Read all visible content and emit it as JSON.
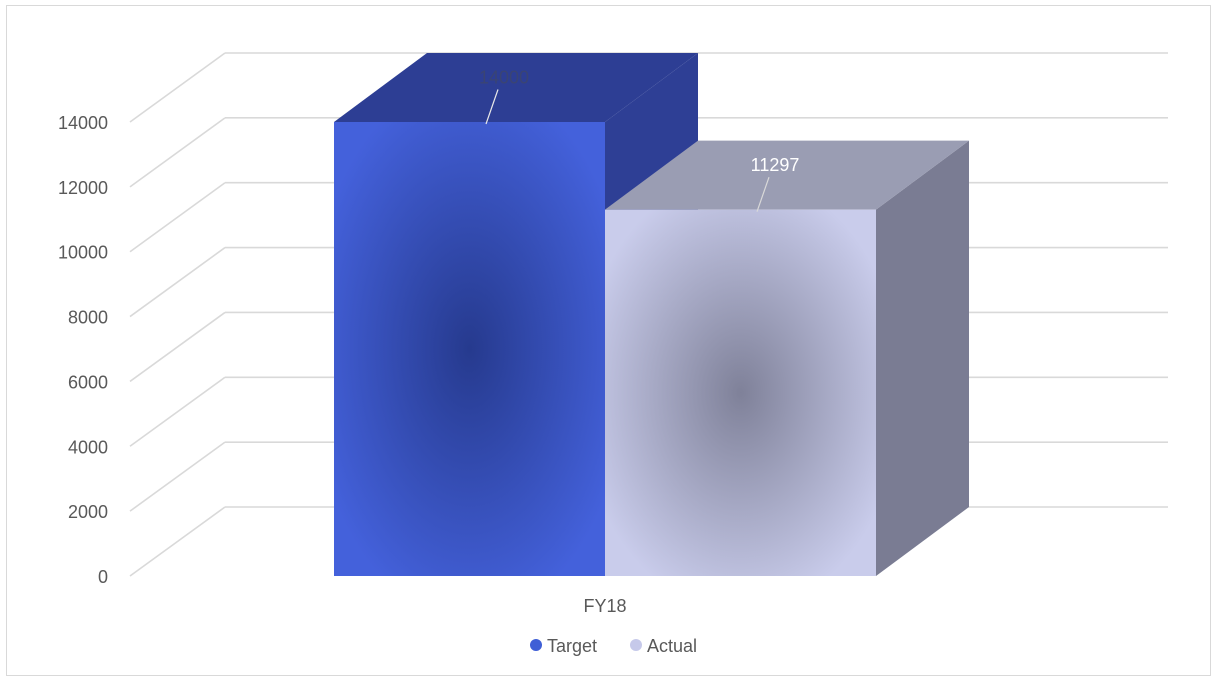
{
  "chart_data": {
    "type": "bar",
    "style": "3d-clustered-column",
    "categories": [
      "FY18"
    ],
    "series": [
      {
        "name": "Target",
        "values": [
          14000
        ],
        "color": "#3f5fd6",
        "side_color": "#2e3f95",
        "top_color": "#2d3e94"
      },
      {
        "name": "Actual",
        "values": [
          11297
        ],
        "color": "#c6c9ea",
        "side_color": "#7a7c93",
        "top_color": "#9a9db3"
      }
    ],
    "data_labels": [
      "14000",
      "11297"
    ],
    "ylim": [
      0,
      14000
    ],
    "yticks": [
      0,
      2000,
      4000,
      6000,
      8000,
      10000,
      12000,
      14000
    ],
    "ytick_labels": [
      "0",
      "2000",
      "4000",
      "6000",
      "8000",
      "10000",
      "12000",
      "14000"
    ],
    "grid": true,
    "legend_position": "bottom",
    "title": "",
    "xlabel": "",
    "ylabel": ""
  },
  "colors": {
    "grid": "#d9d9d9",
    "text": "#595959",
    "frame": "#d9d9d9"
  }
}
